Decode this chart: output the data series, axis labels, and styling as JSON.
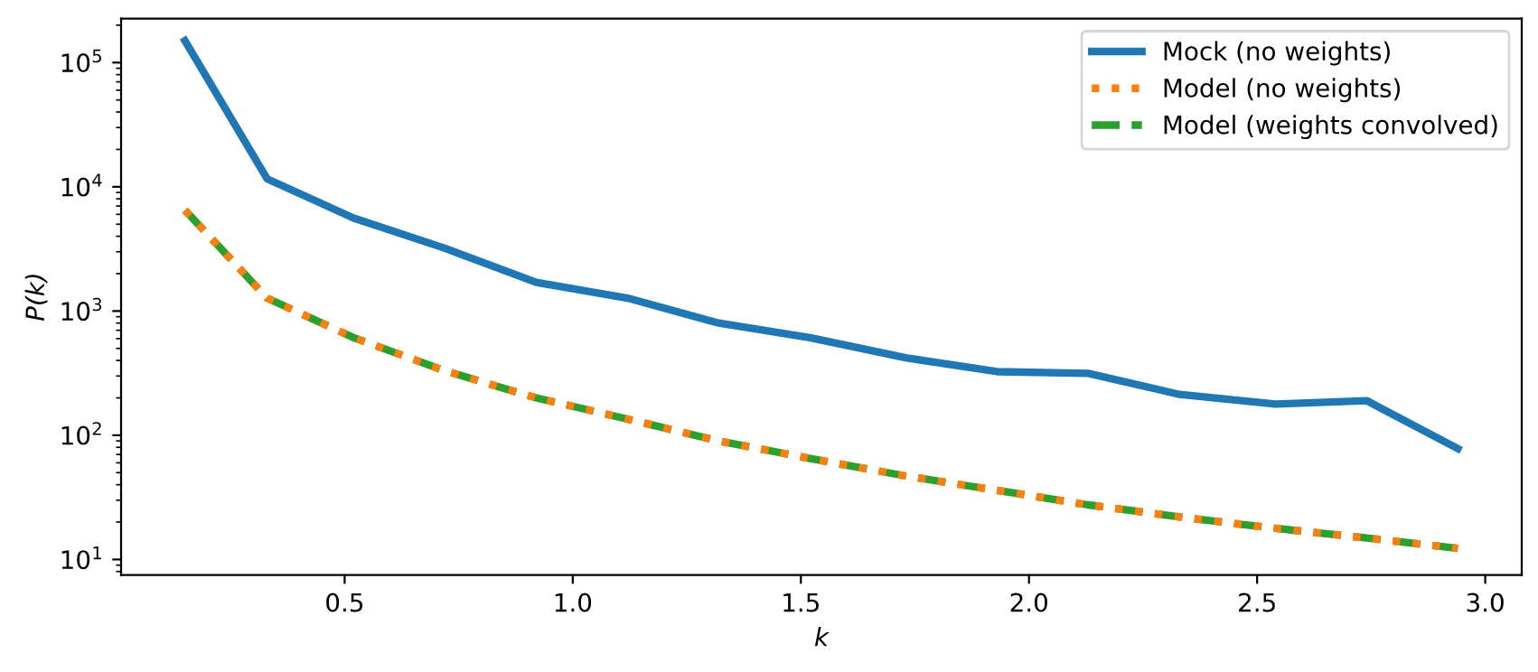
{
  "chart_data": {
    "type": "line",
    "xlabel": "k",
    "ylabel": "P(k)",
    "log": "y",
    "grid": false,
    "legend": "top right",
    "x": [
      0.15,
      0.33,
      0.52,
      0.72,
      0.92,
      1.12,
      1.32,
      1.52,
      1.73,
      1.93,
      2.13,
      2.33,
      2.54,
      2.74,
      2.94
    ],
    "xlim": [
      0.01,
      3.08
    ],
    "xticks": [
      0.5,
      {
        "value": 1,
        "label": "1.0"
      },
      1.5,
      {
        "value": 2,
        "label": "2.0"
      },
      2.5,
      {
        "value": 3,
        "label": "3.0"
      }
    ],
    "ylim": [
      7.5,
      226000
    ],
    "yticks": [
      {
        "value": 10,
        "label": "10$^{1}$"
      },
      {
        "value": 100,
        "label": "10$^{2}$"
      },
      {
        "value": 1000,
        "label": "10$^{3}$"
      },
      {
        "value": 10000,
        "label": "10$^{4}$"
      },
      {
        "value": 100000,
        "label": "10$^{5}$"
      }
    ],
    "series": [
      {
        "name": "Mock (no weights)",
        "color": "#1f77b4",
        "line_style": "solid",
        "values": [
          150000,
          11600,
          5600,
          3200,
          1700,
          1270,
          800,
          610,
          420,
          325,
          315,
          213,
          178,
          190,
          78
        ]
      },
      {
        "name": "Model (no weights)",
        "color": "#ff7f0e",
        "line_style": "dotted",
        "values": [
          6500,
          1270,
          610,
          330,
          200,
          135,
          90,
          65,
          47,
          36,
          27.5,
          22,
          17.8,
          14.9,
          12.3
        ]
      },
      {
        "name": "Model (weights convolved)",
        "color": "#2ca02c",
        "line_style": "dashed",
        "values": [
          6500,
          1270,
          610,
          330,
          200,
          135,
          90,
          65,
          47,
          36,
          27.5,
          22,
          17.8,
          14.9,
          12.3
        ]
      }
    ]
  }
}
